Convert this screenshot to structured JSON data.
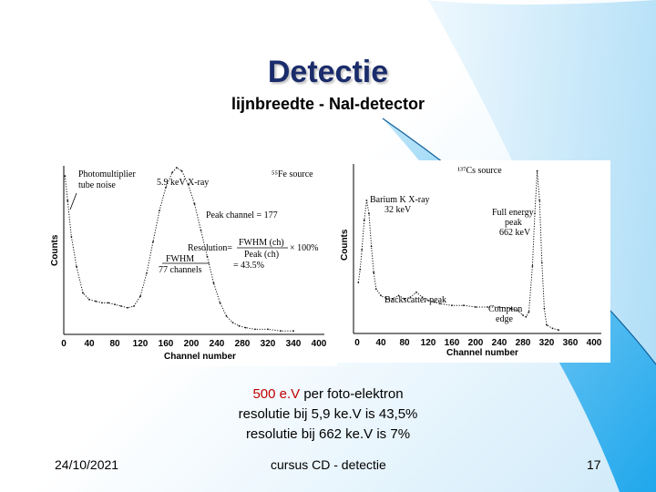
{
  "slide": {
    "title": "Detectie",
    "subtitle": "lijnbreedte - NaI-detector",
    "lines": {
      "line1_highlight": "500 e.V",
      "line1_rest": " per foto-elektron",
      "line2": "resolutie bij 5,9 ke.V is 43,5%",
      "line3": "resolutie bij 662 ke.V is 7%"
    },
    "footer": {
      "date": "24/10/2021",
      "center": "cursus CD - detectie",
      "page": "17"
    },
    "colors": {
      "title": "#1a2c6b",
      "highlight": "#c00000",
      "sweep": "#33b5ee"
    }
  },
  "chart_data": [
    {
      "type": "line",
      "source": "⁵⁵Fe source",
      "xlabel": "Channel number",
      "ylabel": "Counts",
      "xticks": [
        "0",
        "40",
        "80",
        "120",
        "160",
        "200",
        "240",
        "280",
        "320",
        "340",
        "400"
      ],
      "xlim": [
        0,
        400
      ],
      "annotations": {
        "noise": [
          "Photomultiplier",
          "tube noise"
        ],
        "xray": "5.9 keV X-ray",
        "peak_channel": "Peak channel = 177",
        "resolution_label": "Resolution=",
        "fwhm_ch": "FWHM (ch)",
        "peak_ch": "Peak (ch)",
        "times": "× 100%",
        "equals": "= 43.5%",
        "fwhm": "FWHM",
        "fwhm_channels": "77 channels"
      },
      "series": [
        {
          "x": [
            2,
            6,
            12,
            20,
            30,
            40,
            50,
            60,
            70,
            80,
            90,
            100,
            110,
            120,
            130,
            140,
            150,
            160,
            170,
            177,
            185,
            195,
            205,
            215,
            225,
            235,
            245,
            255,
            265,
            275,
            285,
            300,
            320,
            340,
            360
          ],
          "y": [
            95,
            80,
            58,
            40,
            24,
            20,
            19,
            18,
            18,
            17,
            16,
            15,
            16,
            22,
            36,
            55,
            74,
            88,
            97,
            100,
            98,
            90,
            78,
            62,
            46,
            30,
            18,
            10,
            6,
            4,
            3,
            2,
            2,
            1,
            1
          ]
        }
      ]
    },
    {
      "type": "line",
      "source": "¹³⁷Cs source",
      "xlabel": "Channel number",
      "ylabel": "Counts",
      "xticks": [
        "0",
        "40",
        "80",
        "120",
        "160",
        "200",
        "240",
        "280",
        "320",
        "360",
        "400"
      ],
      "xlim": [
        0,
        400
      ],
      "annotations": {
        "barium": [
          "Barium K X-ray",
          "32 keV"
        ],
        "full_energy": [
          "Full energy",
          "peak",
          "662 keV"
        ],
        "backscatter": "Backscatter peak",
        "compton": [
          "Compton",
          "edge"
        ]
      },
      "series": [
        {
          "x": [
            2,
            5,
            8,
            12,
            16,
            20,
            24,
            28,
            32,
            40,
            50,
            60,
            70,
            80,
            90,
            100,
            110,
            120,
            130,
            140,
            160,
            180,
            200,
            220,
            240,
            260,
            270,
            280,
            285,
            290,
            296,
            300,
            304,
            308,
            312,
            316,
            320,
            330,
            340
          ],
          "y": [
            30,
            38,
            50,
            68,
            80,
            72,
            52,
            36,
            26,
            22,
            20,
            20,
            22,
            20,
            21,
            24,
            21,
            19,
            18,
            17,
            16,
            16,
            15,
            15,
            15,
            14,
            13,
            10,
            9,
            12,
            40,
            72,
            98,
            80,
            42,
            14,
            4,
            2,
            1
          ]
        }
      ]
    }
  ]
}
